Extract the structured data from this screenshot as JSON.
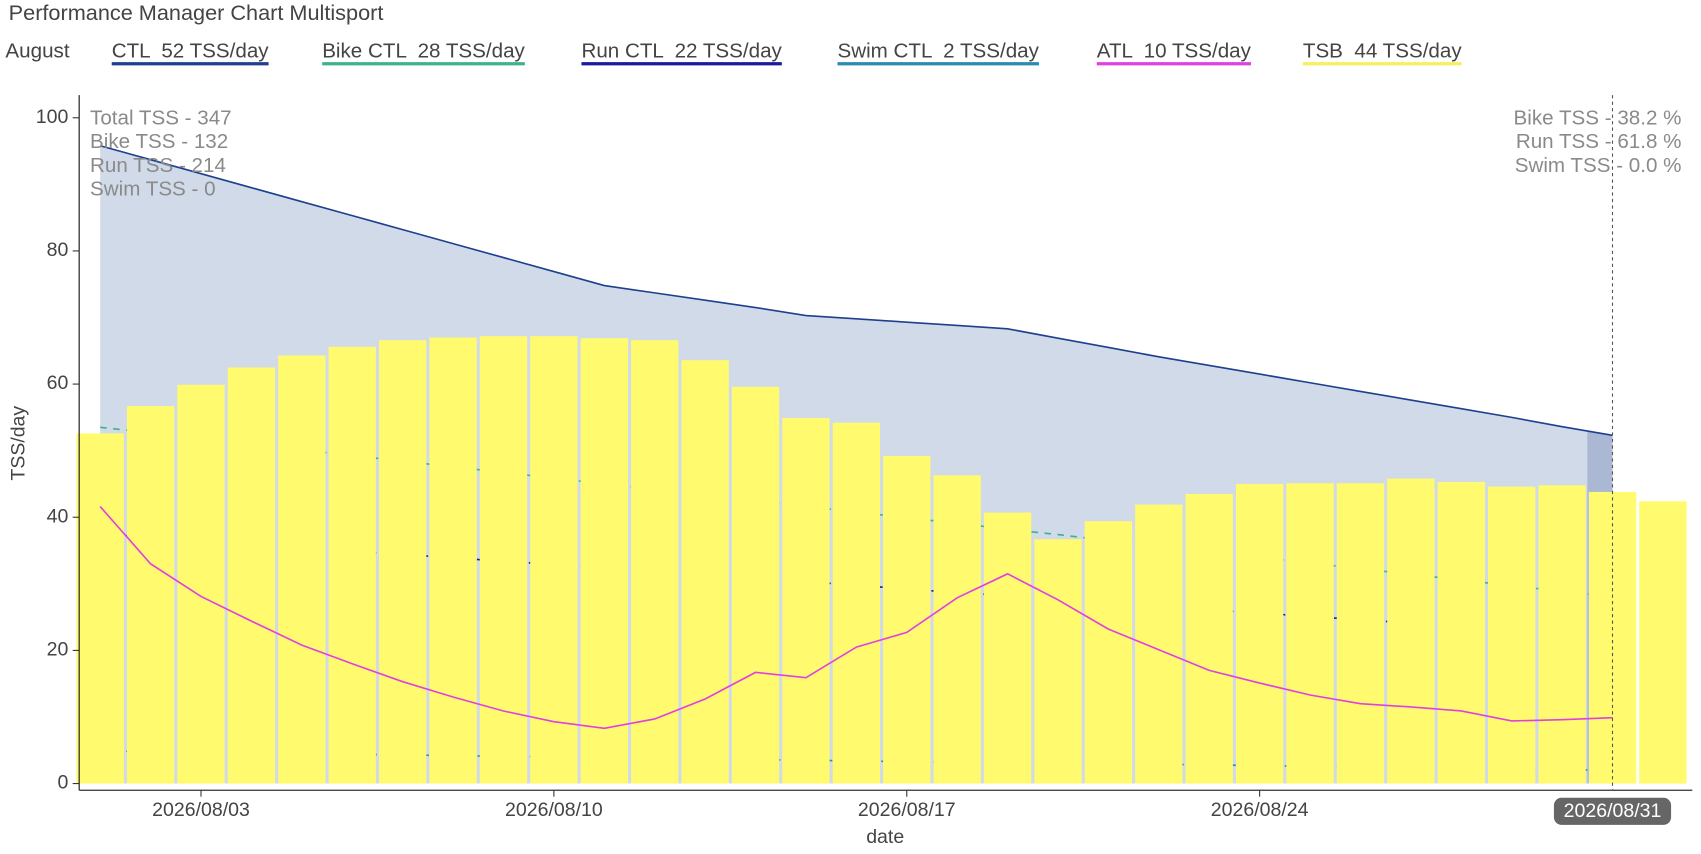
{
  "chart_data": {
    "type": "combo",
    "title": "Performance Manager Chart Multisport",
    "legend_title": "August",
    "x_label": "date",
    "y_label": "TSS/day",
    "x": [
      "2026/08/01",
      "2026/08/02",
      "2026/08/03",
      "2026/08/04",
      "2026/08/05",
      "2026/08/06",
      "2026/08/07",
      "2026/08/08",
      "2026/08/09",
      "2026/08/10",
      "2026/08/11",
      "2026/08/12",
      "2026/08/13",
      "2026/08/14",
      "2026/08/15",
      "2026/08/16",
      "2026/08/17",
      "2026/08/18",
      "2026/08/19",
      "2026/08/20",
      "2026/08/21",
      "2026/08/22",
      "2026/08/23",
      "2026/08/24",
      "2026/08/25",
      "2026/08/26",
      "2026/08/27",
      "2026/08/28",
      "2026/08/29",
      "2026/08/30",
      "2026/08/31",
      "2026/09/01"
    ],
    "xlim": [
      "2026/07/31 14:00",
      "2026/09/01 14:00"
    ],
    "xticks": [
      "2026/08/03",
      "2026/08/10",
      "2026/08/17",
      "2026/08/24"
    ],
    "cursor": "2026/08/31",
    "ylim": [
      -1,
      103.4
    ],
    "yticks": [
      0,
      20,
      40,
      60,
      80,
      100
    ],
    "series": [
      {
        "name": "TSB  44 TSS/day",
        "type": "bar",
        "color": "#fffa6e",
        "legend_color": "#f5f060",
        "values": [
          52.6,
          56.7,
          59.9,
          62.5,
          64.3,
          65.6,
          66.6,
          67.0,
          67.2,
          67.2,
          66.9,
          66.6,
          63.6,
          59.6,
          54.9,
          54.2,
          49.2,
          46.3,
          40.7,
          36.7,
          39.4,
          41.9,
          43.5,
          45.0,
          45.1,
          45.1,
          45.8,
          45.3,
          44.6,
          44.8,
          43.8,
          42.4
        ]
      },
      {
        "name": "CTL  52 TSS/day",
        "type": "area",
        "color": "#1f3f8f",
        "fill": "#d0dae8",
        "values": [
          95.8,
          93.7,
          91.6,
          89.5,
          87.4,
          85.3,
          83.2,
          81.1,
          79.0,
          76.9,
          74.8,
          73.7,
          72.6,
          71.5,
          70.3,
          69.8,
          69.3,
          68.8,
          68.3,
          66.9,
          65.5,
          64.1,
          62.8,
          61.5,
          60.2,
          58.9,
          57.6,
          56.3,
          55.0,
          53.6,
          52.3,
          null
        ]
      },
      {
        "name": "Bike CTL  28 TSS/day",
        "type": "line",
        "dash": "6 6",
        "color": "#3cb48a",
        "values": [
          53.5,
          52.7,
          51.8,
          51.0,
          50.1,
          49.3,
          48.4,
          47.6,
          46.7,
          45.9,
          45.0,
          44.2,
          43.3,
          42.5,
          41.6,
          40.8,
          39.9,
          39.1,
          38.2,
          37.4,
          36.5,
          35.7,
          34.8,
          34.0,
          33.1,
          32.3,
          31.4,
          30.6,
          29.7,
          28.9,
          28.0,
          null
        ]
      },
      {
        "name": "Run CTL  22 TSS/day",
        "type": "line",
        "dash": "3 9",
        "color": "#1a1a9e",
        "values": [
          37.5,
          37.0,
          36.5,
          36.0,
          35.4,
          34.9,
          34.4,
          33.9,
          33.4,
          32.9,
          32.3,
          31.8,
          31.3,
          30.8,
          30.3,
          29.8,
          29.2,
          28.7,
          28.2,
          27.7,
          27.2,
          26.7,
          26.1,
          25.6,
          25.1,
          24.6,
          24.1,
          23.6,
          23.0,
          22.5,
          22.0,
          null
        ]
      },
      {
        "name": "Swim CTL  2 TSS/day",
        "type": "line",
        "dash": "3 9",
        "color": "#2a8ab0",
        "values": [
          4.9,
          4.8,
          4.7,
          4.6,
          4.5,
          4.4,
          4.3,
          4.2,
          4.1,
          4.0,
          3.9,
          3.8,
          3.7,
          3.6,
          3.5,
          3.4,
          3.3,
          3.2,
          3.1,
          3.0,
          3.0,
          2.9,
          2.8,
          2.7,
          2.6,
          2.5,
          2.4,
          2.3,
          2.2,
          2.1,
          2.0,
          null
        ]
      },
      {
        "name": "ATL  10 TSS/day",
        "type": "line",
        "color": "#e040e0",
        "values": [
          41.6,
          33.0,
          28.1,
          24.4,
          20.8,
          18.0,
          15.3,
          13.0,
          10.9,
          9.3,
          8.3,
          9.7,
          12.7,
          16.7,
          15.9,
          20.5,
          22.7,
          27.9,
          31.5,
          27.6,
          23.2,
          20.1,
          17.0,
          15.1,
          13.3,
          12.0,
          11.5,
          10.9,
          9.4,
          9.6,
          9.9,
          null
        ]
      }
    ],
    "legend_order": [
      1,
      2,
      3,
      4,
      5,
      0
    ],
    "annotations_left": [
      "Total TSS - 347",
      "Bike TSS - 132",
      "Run TSS - 214",
      "Swim TSS - 0"
    ],
    "annotations_right": [
      "Bike TSS - 38.2 %",
      "Run TSS - 61.8 %",
      "Swim TSS - 0.0 %"
    ]
  }
}
